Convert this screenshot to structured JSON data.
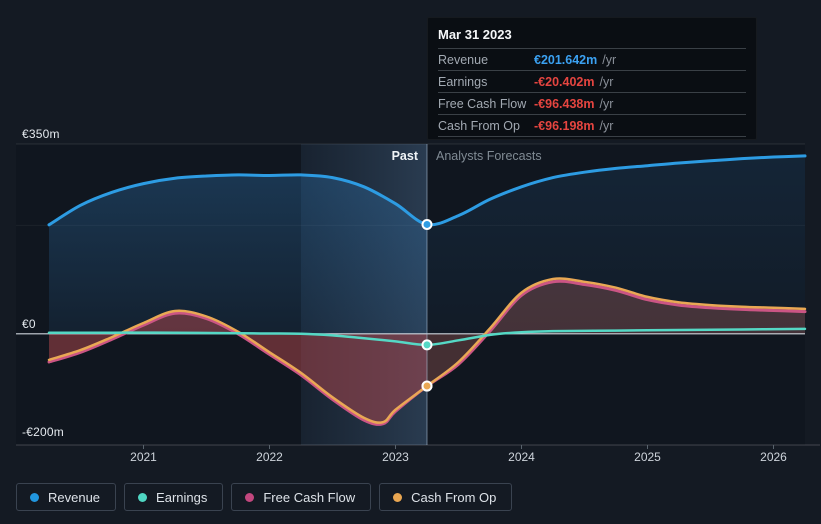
{
  "tooltip": {
    "title": "Mar 31 2023",
    "rows": [
      {
        "label": "Revenue",
        "value": "€201.642m",
        "suffix": "/yr",
        "value_color": "#3ba1f2"
      },
      {
        "label": "Earnings",
        "value": "-€20.402m",
        "suffix": "/yr",
        "value_color": "#e54540"
      },
      {
        "label": "Free Cash Flow",
        "value": "-€96.438m",
        "suffix": "/yr",
        "value_color": "#e54540"
      },
      {
        "label": "Cash From Op",
        "value": "-€96.198m",
        "suffix": "/yr",
        "value_color": "#e54540"
      }
    ]
  },
  "annotations": {
    "past": "Past",
    "forecast": "Analysts Forecasts"
  },
  "legend": {
    "items": [
      {
        "label": "Revenue",
        "color": "#2196de"
      },
      {
        "label": "Earnings",
        "color": "#4fd6c3"
      },
      {
        "label": "Free Cash Flow",
        "color": "#c2477e"
      },
      {
        "label": "Cash From Op",
        "color": "#e9a651"
      }
    ]
  },
  "chart_data": {
    "type": "area",
    "title": "",
    "xlabel": "",
    "ylabel": "€m",
    "xlim": [
      2020.25,
      2026.25
    ],
    "ylim": [
      -205,
      350
    ],
    "grid": true,
    "legend_position": "bottom-left",
    "x_ticks": [
      {
        "value": 2021,
        "label": "2021"
      },
      {
        "value": 2022,
        "label": "2022"
      },
      {
        "value": 2023,
        "label": "2023"
      },
      {
        "value": 2024,
        "label": "2024"
      },
      {
        "value": 2025,
        "label": "2025"
      },
      {
        "value": 2026,
        "label": "2026"
      }
    ],
    "y_ticks": [
      {
        "value": 350,
        "label": "€350m",
        "grid": "normal"
      },
      {
        "value": 200,
        "label": "",
        "grid": "faint"
      },
      {
        "value": 0,
        "label": "€0",
        "grid": "zero"
      },
      {
        "value": -200,
        "label": "-€200m",
        "grid": "none"
      }
    ],
    "divider_x": 2023.25,
    "highlight_band": {
      "from": 2022.25,
      "to": 2023.25
    },
    "series": [
      {
        "name": "Revenue",
        "color": "#2d9ce3",
        "width": 3,
        "x": [
          2020.25,
          2020.5,
          2020.75,
          2021,
          2021.25,
          2021.5,
          2021.75,
          2022,
          2022.25,
          2022.5,
          2022.75,
          2023,
          2023.25,
          2023.5,
          2023.75,
          2024,
          2024.25,
          2024.5,
          2024.75,
          2025,
          2025.25,
          2025.5,
          2025.75,
          2026,
          2026.25
        ],
        "values": [
          201,
          237,
          261,
          277,
          287,
          291,
          293,
          292,
          293,
          288,
          271,
          240,
          201.642,
          218,
          248,
          271,
          288,
          298,
          305,
          310,
          315,
          319,
          323,
          326,
          328
        ]
      },
      {
        "name": "Earnings",
        "color": "#55d8c5",
        "width": 2.5,
        "x": [
          2020.25,
          2020.75,
          2021.25,
          2021.75,
          2022,
          2022.25,
          2022.5,
          2022.75,
          2023,
          2023.25,
          2023.5,
          2023.75,
          2024,
          2024.25,
          2024.75,
          2025.25,
          2025.75,
          2026.25
        ],
        "values": [
          2,
          2,
          2,
          1,
          0.5,
          0,
          -3,
          -8,
          -14,
          -20.402,
          -12,
          -2,
          3,
          5,
          6,
          7,
          8,
          9
        ]
      },
      {
        "name": "Free Cash Flow",
        "color": "#cb5584",
        "width": 3,
        "x": [
          2020.25,
          2020.5,
          2020.75,
          2021,
          2021.25,
          2021.5,
          2021.75,
          2022,
          2022.25,
          2022.5,
          2022.75,
          2022.9,
          2023,
          2023.25,
          2023.5,
          2023.75,
          2024,
          2024.25,
          2024.5,
          2024.75,
          2025,
          2025.25,
          2025.5,
          2025.75,
          2026,
          2026.25
        ],
        "values": [
          -52,
          -34,
          -10,
          16,
          38,
          28,
          0,
          -38,
          -76,
          -121,
          -159,
          -166,
          -143,
          -96.438,
          -56,
          5,
          71,
          96,
          91,
          80,
          63,
          53,
          48,
          45,
          43,
          41
        ]
      },
      {
        "name": "Cash From Op",
        "color": "#e9a854",
        "width": 2.5,
        "x": [
          2020.25,
          2020.5,
          2020.75,
          2021,
          2021.25,
          2021.5,
          2021.75,
          2022,
          2022.25,
          2022.5,
          2022.75,
          2022.9,
          2023,
          2023.25,
          2023.5,
          2023.75,
          2024,
          2024.25,
          2024.5,
          2024.75,
          2025,
          2025.25,
          2025.5,
          2025.75,
          2026,
          2026.25
        ],
        "values": [
          -48,
          -30,
          -6,
          20,
          42,
          32,
          4,
          -34,
          -72,
          -117,
          -155,
          -163,
          -140,
          -96.198,
          -52,
          10,
          76,
          101,
          96,
          85,
          68,
          58,
          53,
          50,
          48,
          46
        ]
      }
    ],
    "markers": {
      "x": 2023.25,
      "points": [
        {
          "series": "Free Cash Flow",
          "value": -96.438
        },
        {
          "series": "Cash From Op",
          "value": -96.198
        },
        {
          "series": "Earnings",
          "value": -20.402
        },
        {
          "series": "Revenue",
          "value": 201.642
        }
      ]
    },
    "style": {
      "plot_bg": "#10161f",
      "band_left": "rgba(96,146,199,0.10)",
      "band_right": "rgba(116,168,222,0.26)",
      "revenue_past_top": "rgba(50,130,198,0.34)",
      "revenue_past_bottom": "rgba(50,130,198,0.10)",
      "revenue_fc_top": "rgba(45,120,185,0.16)",
      "revenue_fc_bottom": "rgba(45,120,185,0.05)",
      "cash_past": "rgba(178,72,78,0.50)",
      "cash_fc": "rgba(190,105,98,0.30)",
      "grid_normal": "rgba(255,255,255,0.10)",
      "grid_faint": "rgba(255,255,255,0.05)",
      "zero_line": "#cdd4db",
      "axis_line": "rgba(255,255,255,0.20)",
      "tick_mark": "#59636d",
      "divider": "rgba(176,199,223,0.55)",
      "marker_ring": "#ffffff"
    }
  }
}
